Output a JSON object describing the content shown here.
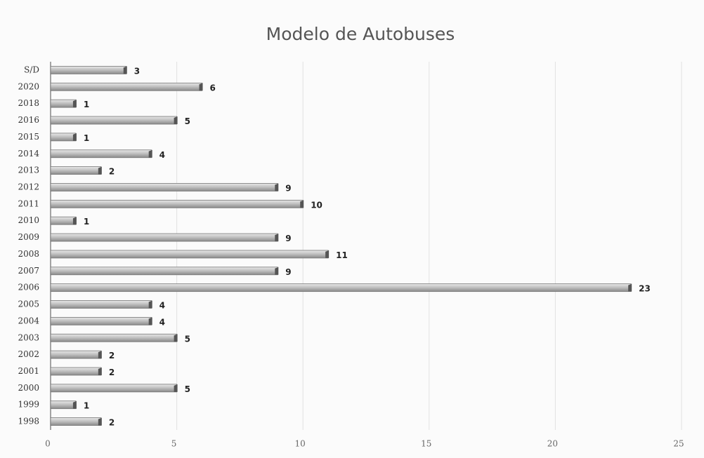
{
  "chart_data": {
    "type": "bar",
    "orientation": "horizontal",
    "title": "Modelo de Autobuses",
    "categories": [
      "S/D",
      "2020",
      "2018",
      "2016",
      "2015",
      "2014",
      "2013",
      "2012",
      "2011",
      "2010",
      "2009",
      "2008",
      "2007",
      "2006",
      "2005",
      "2004",
      "2003",
      "2002",
      "2001",
      "2000",
      "1999",
      "1998"
    ],
    "values": [
      3,
      6,
      1,
      5,
      1,
      4,
      2,
      9,
      10,
      1,
      9,
      11,
      9,
      23,
      4,
      4,
      5,
      2,
      2,
      5,
      1,
      2
    ],
    "color": "#b4b4b4",
    "xlim": [
      0,
      25
    ],
    "xticks": [
      0,
      5,
      10,
      15,
      20,
      25
    ],
    "grid": true
  }
}
